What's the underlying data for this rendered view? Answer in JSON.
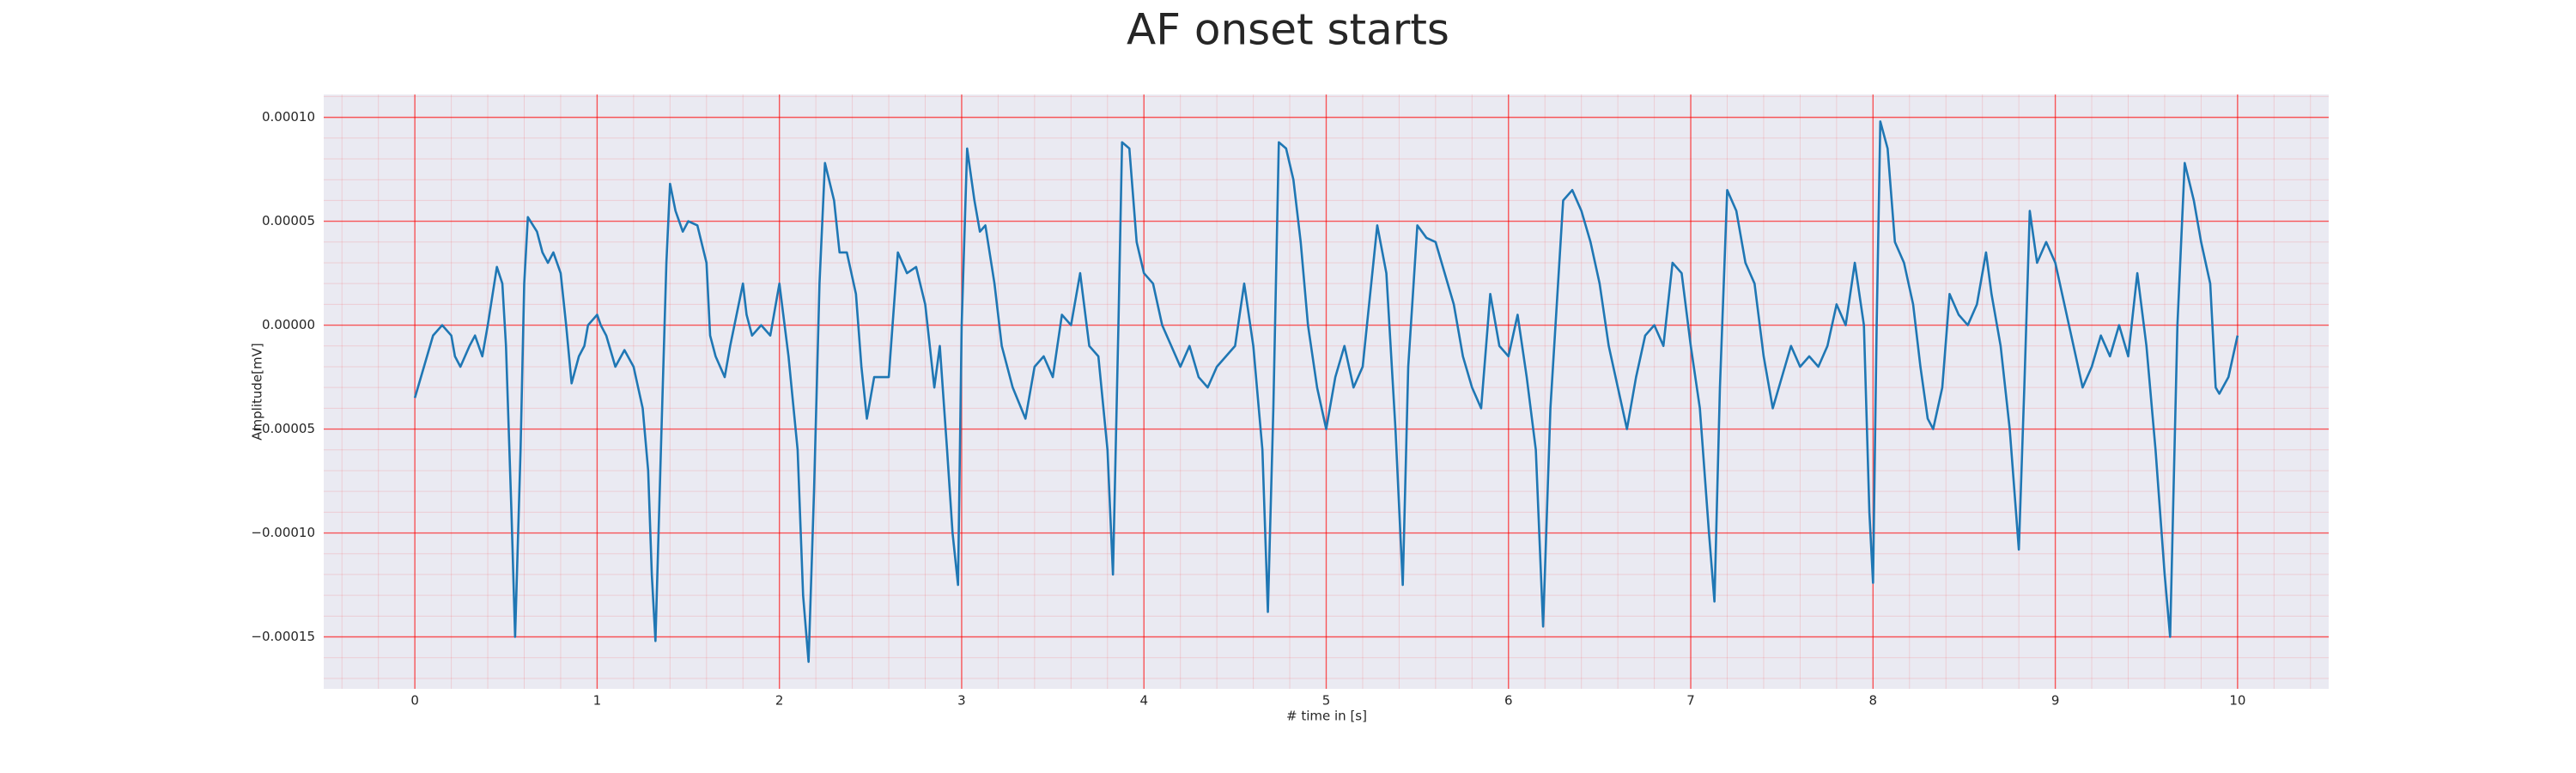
{
  "chart_data": {
    "type": "line",
    "title": "AF onset starts",
    "xlabel": "# time in [s]",
    "ylabel": "Amplitude[mV]",
    "xlim": [
      -0.5,
      10.5
    ],
    "ylim": [
      -0.000175,
      0.000111
    ],
    "xticks": [
      0,
      1,
      2,
      3,
      4,
      5,
      6,
      7,
      8,
      9,
      10
    ],
    "yticks": [
      {
        "value": -0.00015,
        "label": "−0.00015"
      },
      {
        "value": -0.0001,
        "label": "−0.00010"
      },
      {
        "value": -5e-05,
        "label": "−0.00005"
      },
      {
        "value": 0,
        "label": "0.00000"
      },
      {
        "value": 5e-05,
        "label": "0.00005"
      },
      {
        "value": 0.0001,
        "label": "0.00010"
      }
    ],
    "grid": true,
    "minor_grid": true,
    "grid_color": "#ff0000",
    "background": "#eaeaf2",
    "series": [
      {
        "color": "#1f77b4",
        "x": [
          0,
          0.05,
          0.1,
          0.15,
          0.2,
          0.22,
          0.25,
          0.3,
          0.33,
          0.37,
          0.4,
          0.45,
          0.48,
          0.5,
          0.53,
          0.55,
          0.58,
          0.6,
          0.62,
          0.67,
          0.7,
          0.73,
          0.76,
          0.8,
          0.83,
          0.86,
          0.9,
          0.93,
          0.95,
          1.0,
          1.02,
          1.05,
          1.1,
          1.15,
          1.2,
          1.25,
          1.28,
          1.3,
          1.32,
          1.35,
          1.38,
          1.4,
          1.43,
          1.47,
          1.5,
          1.55,
          1.6,
          1.62,
          1.65,
          1.7,
          1.73,
          1.8,
          1.82,
          1.85,
          1.9,
          1.95,
          2.0,
          2.05,
          2.1,
          2.13,
          2.16,
          2.19,
          2.22,
          2.25,
          2.3,
          2.33,
          2.37,
          2.42,
          2.45,
          2.48,
          2.52,
          2.6,
          2.65,
          2.7,
          2.75,
          2.8,
          2.85,
          2.88,
          2.92,
          2.95,
          2.98,
          3.0,
          3.03,
          3.07,
          3.1,
          3.13,
          3.18,
          3.22,
          3.28,
          3.35,
          3.4,
          3.45,
          3.5,
          3.55,
          3.6,
          3.65,
          3.7,
          3.75,
          3.8,
          3.83,
          3.86,
          3.88,
          3.92,
          3.96,
          4.0,
          4.05,
          4.1,
          4.15,
          4.2,
          4.25,
          4.3,
          4.35,
          4.4,
          4.45,
          4.5,
          4.55,
          4.6,
          4.65,
          4.68,
          4.71,
          4.74,
          4.78,
          4.82,
          4.86,
          4.9,
          4.95,
          5.0,
          5.05,
          5.1,
          5.15,
          5.2,
          5.28,
          5.33,
          5.38,
          5.42,
          5.45,
          5.5,
          5.55,
          5.6,
          5.7,
          5.75,
          5.8,
          5.85,
          5.9,
          5.95,
          6.0,
          6.05,
          6.1,
          6.15,
          6.19,
          6.23,
          6.3,
          6.35,
          6.4,
          6.45,
          6.5,
          6.55,
          6.6,
          6.65,
          6.7,
          6.75,
          6.8,
          6.85,
          6.9,
          6.95,
          7.0,
          7.05,
          7.1,
          7.13,
          7.16,
          7.2,
          7.25,
          7.3,
          7.35,
          7.4,
          7.45,
          7.5,
          7.55,
          7.6,
          7.65,
          7.7,
          7.75,
          7.8,
          7.85,
          7.9,
          7.95,
          7.98,
          8.0,
          8.02,
          8.04,
          8.08,
          8.12,
          8.17,
          8.22,
          8.26,
          8.3,
          8.33,
          8.38,
          8.42,
          8.47,
          8.52,
          8.57,
          8.62,
          8.65,
          8.7,
          8.75,
          8.8,
          8.83,
          8.86,
          8.9,
          8.95,
          9.0,
          9.05,
          9.1,
          9.15,
          9.2,
          9.25,
          9.3,
          9.35,
          9.4,
          9.45,
          9.5,
          9.55,
          9.6,
          9.63,
          9.67,
          9.71,
          9.76,
          9.8,
          9.85,
          9.88,
          9.9,
          9.95,
          10.0
        ],
        "values": [
          -3.5e-05,
          -2e-05,
          -5e-06,
          0,
          -5e-06,
          -1.5e-05,
          -2e-05,
          -1e-05,
          -5e-06,
          -1.5e-05,
          0,
          2.8e-05,
          2e-05,
          -1e-05,
          -9e-05,
          -0.00015,
          -6e-05,
          2e-05,
          5.2e-05,
          4.5e-05,
          3.5e-05,
          3e-05,
          3.5e-05,
          2.5e-05,
          0,
          -2.8e-05,
          -1.5e-05,
          -1e-05,
          0,
          5e-06,
          0,
          -5e-06,
          -2e-05,
          -1.2e-05,
          -2e-05,
          -4e-05,
          -7e-05,
          -0.00012,
          -0.000152,
          -6e-05,
          3e-05,
          6.8e-05,
          5.5e-05,
          4.5e-05,
          5e-05,
          4.8e-05,
          3e-05,
          -5e-06,
          -1.5e-05,
          -2.5e-05,
          -1e-05,
          2e-05,
          5e-06,
          -5e-06,
          0,
          -5e-06,
          2e-05,
          -1.5e-05,
          -6e-05,
          -0.00013,
          -0.000162,
          -8e-05,
          2e-05,
          7.8e-05,
          6e-05,
          3.5e-05,
          3.5e-05,
          1.5e-05,
          -2e-05,
          -4.5e-05,
          -2.5e-05,
          -2.5e-05,
          3.5e-05,
          2.5e-05,
          2.8e-05,
          1e-05,
          -3e-05,
          -1e-05,
          -6e-05,
          -0.0001,
          -0.000125,
          0,
          8.5e-05,
          6e-05,
          4.5e-05,
          4.8e-05,
          2e-05,
          -1e-05,
          -3e-05,
          -4.5e-05,
          -2e-05,
          -1.5e-05,
          -2.5e-05,
          5e-06,
          0,
          2.5e-05,
          -1e-05,
          -1.5e-05,
          -6e-05,
          -0.00012,
          0,
          8.8e-05,
          8.5e-05,
          4e-05,
          2.5e-05,
          2e-05,
          0,
          -1e-05,
          -2e-05,
          -1e-05,
          -2.5e-05,
          -3e-05,
          -2e-05,
          -1.5e-05,
          -1e-05,
          2e-05,
          -1e-05,
          -6e-05,
          -0.000138,
          -4e-05,
          8.8e-05,
          8.5e-05,
          7e-05,
          4e-05,
          0,
          -3e-05,
          -5e-05,
          -2.5e-05,
          -1e-05,
          -3e-05,
          -2e-05,
          4.8e-05,
          2.5e-05,
          -5e-05,
          -0.000125,
          -2e-05,
          4.8e-05,
          4.2e-05,
          4e-05,
          1e-05,
          -1.5e-05,
          -3e-05,
          -4e-05,
          1.5e-05,
          -1e-05,
          -1.5e-05,
          5e-06,
          -2.5e-05,
          -6e-05,
          -0.000145,
          -4e-05,
          6e-05,
          6.5e-05,
          5.5e-05,
          4e-05,
          2e-05,
          -1e-05,
          -3e-05,
          -5e-05,
          -2.5e-05,
          -5e-06,
          0,
          -1e-05,
          3e-05,
          2.5e-05,
          -1e-05,
          -4e-05,
          -0.0001,
          -0.000133,
          -3e-05,
          6.5e-05,
          5.5e-05,
          3e-05,
          2e-05,
          -1.5e-05,
          -4e-05,
          -2.5e-05,
          -1e-05,
          -2e-05,
          -1.5e-05,
          -2e-05,
          -1e-05,
          1e-05,
          0,
          3e-05,
          0,
          -9e-05,
          -0.000124,
          0,
          9.8e-05,
          8.5e-05,
          4e-05,
          3e-05,
          1e-05,
          -2e-05,
          -4.5e-05,
          -5e-05,
          -3e-05,
          1.5e-05,
          5e-06,
          0,
          1e-05,
          3.5e-05,
          1.5e-05,
          -1e-05,
          -5e-05,
          -0.000108,
          -3e-05,
          5.5e-05,
          3e-05,
          4e-05,
          3e-05,
          1e-05,
          -1e-05,
          -3e-05,
          -2e-05,
          -5e-06,
          -1.5e-05,
          0,
          -1.5e-05,
          2.5e-05,
          -1e-05,
          -6e-05,
          -0.00012,
          -0.00015,
          0,
          7.8e-05,
          6e-05,
          4e-05,
          2e-05,
          -3e-05,
          -3.3e-05,
          -2.5e-05,
          -5e-06
        ]
      }
    ]
  }
}
